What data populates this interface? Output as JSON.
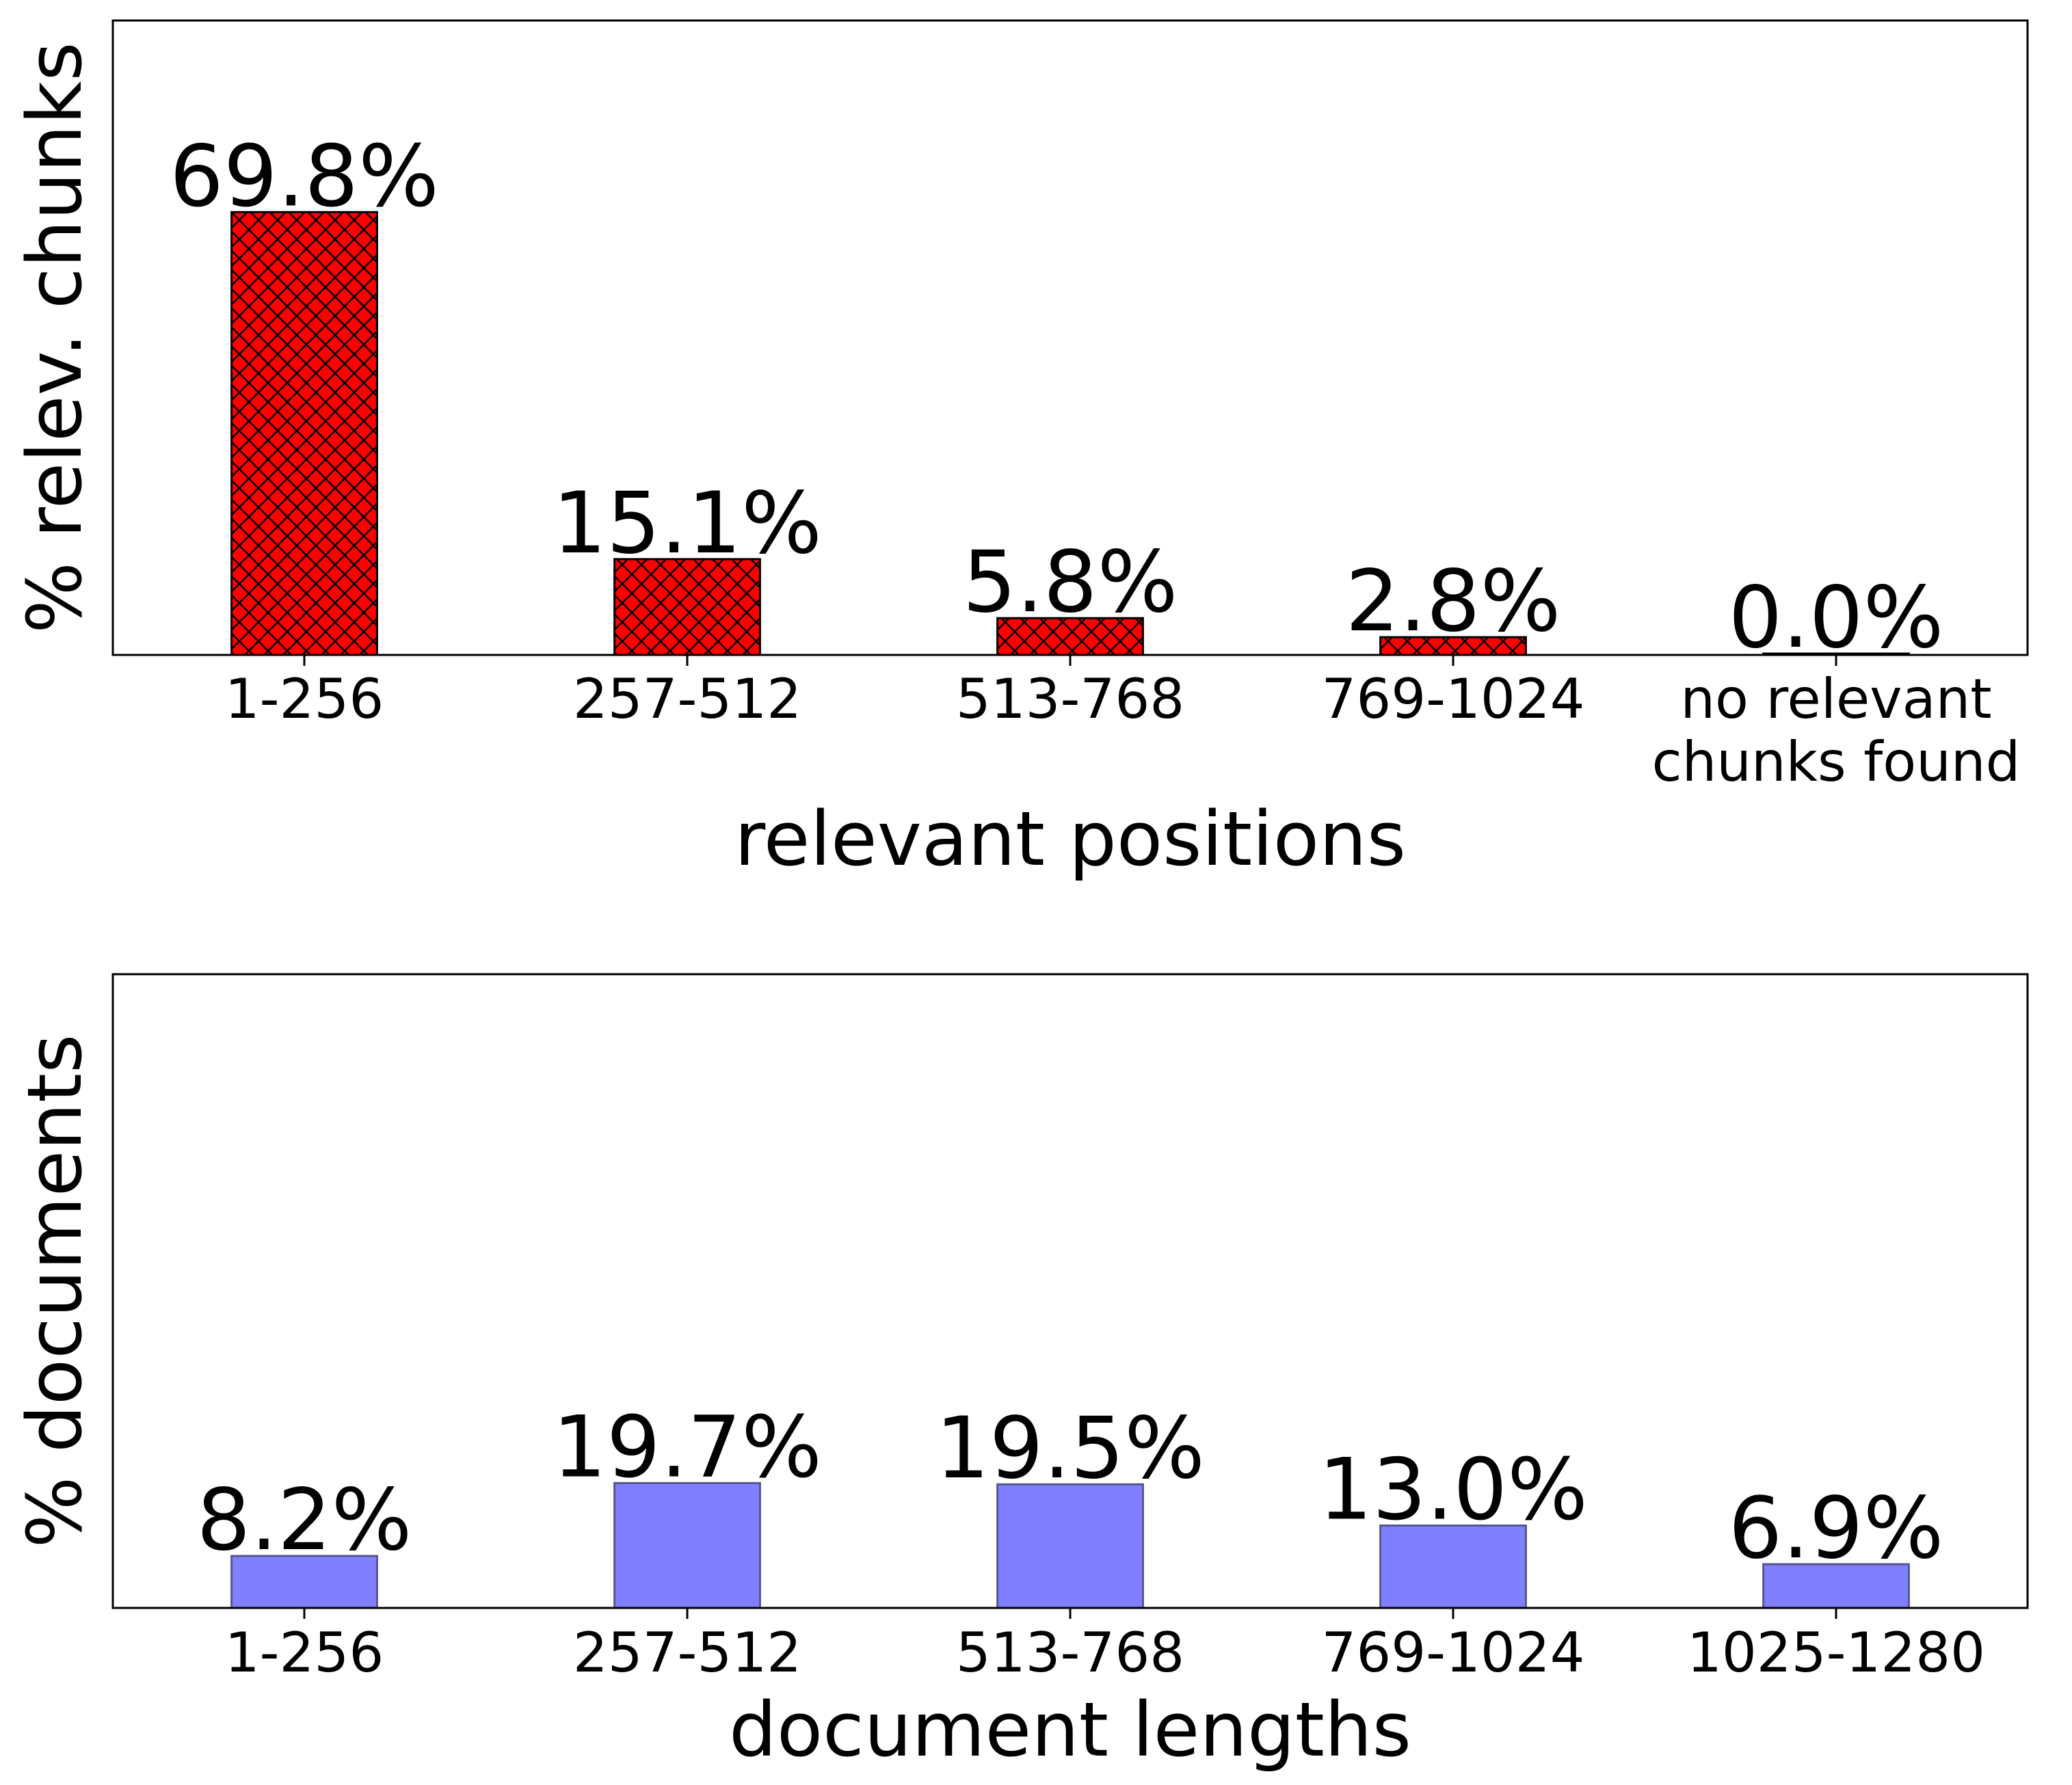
{
  "chart_data": [
    {
      "type": "bar",
      "categories": [
        "1-256",
        "257-512",
        "513-768",
        "769-1024",
        "no relevant chunks found"
      ],
      "category_lines": [
        [
          "1-256"
        ],
        [
          "257-512"
        ],
        [
          "513-768"
        ],
        [
          "769-1024"
        ],
        [
          "no relevant",
          "chunks found"
        ]
      ],
      "values": [
        69.8,
        15.1,
        5.8,
        2.8,
        0.0
      ],
      "value_labels": [
        "69.8%",
        "15.1%",
        "5.8%",
        "2.8%",
        "0.0%"
      ],
      "xlabel": "relevant positions",
      "ylabel": "% relev. chunks",
      "ylim": [
        0,
        100
      ],
      "bar_color": "#ff0000",
      "hatch": "crosshatch",
      "grid": false
    },
    {
      "type": "bar",
      "categories": [
        "1-256",
        "257-512",
        "513-768",
        "769-1024",
        "1025-1280"
      ],
      "category_lines": [
        [
          "1-256"
        ],
        [
          "257-512"
        ],
        [
          "513-768"
        ],
        [
          "769-1024"
        ],
        [
          "1025-1280"
        ]
      ],
      "values": [
        8.2,
        19.7,
        19.5,
        13.0,
        6.9
      ],
      "value_labels": [
        "8.2%",
        "19.7%",
        "19.5%",
        "13.0%",
        "6.9%"
      ],
      "xlabel": "document lengths",
      "ylabel": "% documents",
      "ylim": [
        0,
        100
      ],
      "bar_color": "#8080ff",
      "hatch": "none",
      "grid": false
    }
  ]
}
